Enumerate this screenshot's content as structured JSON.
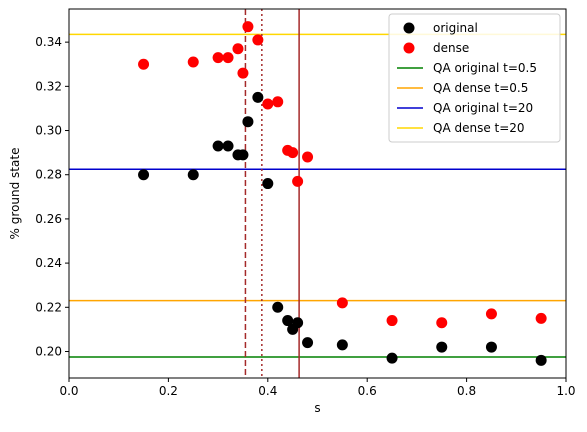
{
  "chart_data": {
    "type": "scatter",
    "xlabel": "s",
    "ylabel": "% ground state",
    "xlim": [
      0.0,
      1.0
    ],
    "ylim": [
      0.188,
      0.355
    ],
    "xticks": [
      0.0,
      0.2,
      0.4,
      0.6,
      0.8,
      1.0
    ],
    "xtick_labels": [
      "0.0",
      "0.2",
      "0.4",
      "0.6",
      "0.8",
      "1.0"
    ],
    "yticks": [
      0.2,
      0.22,
      0.24,
      0.26,
      0.28,
      0.3,
      0.32,
      0.34
    ],
    "ytick_labels": [
      "0.20",
      "0.22",
      "0.24",
      "0.26",
      "0.28",
      "0.30",
      "0.32",
      "0.34"
    ],
    "grid": false,
    "legend_position": "top-right",
    "series": [
      {
        "name": "original",
        "kind": "scatter",
        "color": "#000000",
        "points": [
          [
            0.15,
            0.28
          ],
          [
            0.25,
            0.28
          ],
          [
            0.3,
            0.293
          ],
          [
            0.32,
            0.293
          ],
          [
            0.34,
            0.289
          ],
          [
            0.35,
            0.289
          ],
          [
            0.36,
            0.304
          ],
          [
            0.38,
            0.315
          ],
          [
            0.4,
            0.276
          ],
          [
            0.42,
            0.22
          ],
          [
            0.44,
            0.214
          ],
          [
            0.45,
            0.21
          ],
          [
            0.46,
            0.213
          ],
          [
            0.48,
            0.204
          ],
          [
            0.55,
            0.203
          ],
          [
            0.65,
            0.197
          ],
          [
            0.75,
            0.202
          ],
          [
            0.85,
            0.202
          ],
          [
            0.95,
            0.196
          ]
        ]
      },
      {
        "name": "dense",
        "kind": "scatter",
        "color": "#ff0000",
        "points": [
          [
            0.15,
            0.33
          ],
          [
            0.25,
            0.331
          ],
          [
            0.3,
            0.333
          ],
          [
            0.32,
            0.333
          ],
          [
            0.34,
            0.337
          ],
          [
            0.35,
            0.326
          ],
          [
            0.36,
            0.347
          ],
          [
            0.38,
            0.341
          ],
          [
            0.4,
            0.312
          ],
          [
            0.42,
            0.313
          ],
          [
            0.44,
            0.291
          ],
          [
            0.45,
            0.29
          ],
          [
            0.46,
            0.277
          ],
          [
            0.48,
            0.288
          ],
          [
            0.55,
            0.222
          ],
          [
            0.65,
            0.214
          ],
          [
            0.75,
            0.213
          ],
          [
            0.85,
            0.217
          ],
          [
            0.95,
            0.215
          ]
        ]
      },
      {
        "name": "QA original t=0.5",
        "kind": "hline",
        "color": "#008000",
        "y": 0.1975
      },
      {
        "name": "QA dense t=0.5",
        "kind": "hline",
        "color": "#ffa500",
        "y": 0.223
      },
      {
        "name": "QA original t=20",
        "kind": "hline",
        "color": "#0000cd",
        "y": 0.2825
      },
      {
        "name": "QA dense t=20",
        "kind": "hline",
        "color": "#ffd700",
        "y": 0.3435
      }
    ],
    "vlines": [
      {
        "x": 0.355,
        "style": "dashed",
        "color": "#a52a2a"
      },
      {
        "x": 0.388,
        "style": "dotted",
        "color": "#a52a2a"
      },
      {
        "x": 0.463,
        "style": "solid",
        "color": "#a52a2a"
      }
    ]
  }
}
